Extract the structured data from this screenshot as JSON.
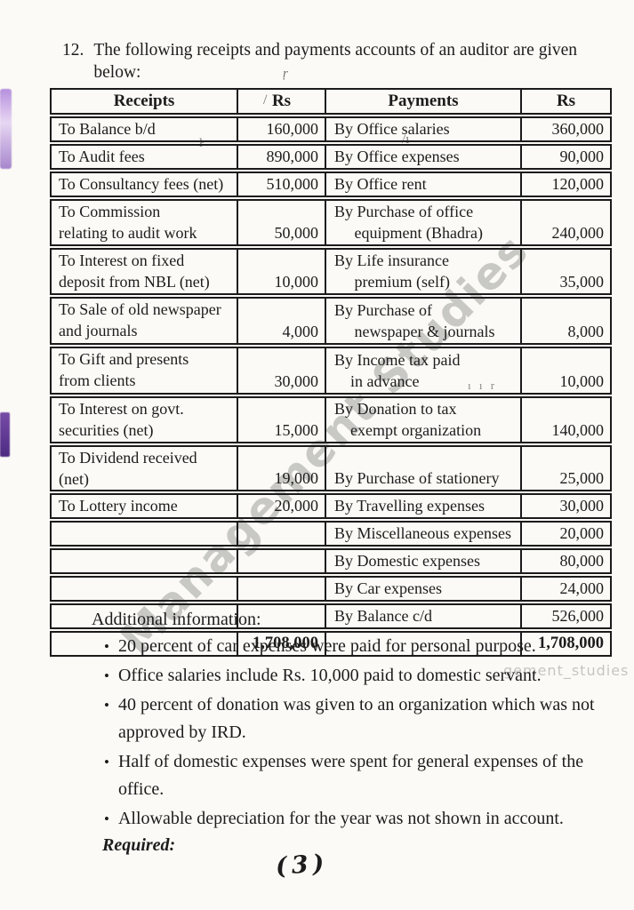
{
  "question": {
    "number": "12.",
    "text": "The following receipts and payments accounts of an auditor are given\nbelow:"
  },
  "table": {
    "headers": [
      "Receipts",
      "Rs",
      "Payments",
      "Rs"
    ],
    "rows": [
      {
        "receipt": "To Balance b/d",
        "receipt_amount": "160,000",
        "payment": "By Office salaries",
        "payment_amount": "360,000"
      },
      {
        "receipt": "To Audit fees",
        "receipt_amount": "890,000",
        "payment": "By Office expenses",
        "payment_amount": "90,000"
      },
      {
        "receipt": "To Consultancy fees (net)",
        "receipt_amount": "510,000",
        "payment": "By Office rent",
        "payment_amount": "120,000"
      },
      {
        "receipt": "To Commission\nrelating to audit work",
        "receipt_amount": "50,000",
        "payment": "By Purchase of office\n     equipment (Bhadra)",
        "payment_amount": "240,000"
      },
      {
        "receipt": "To Interest on fixed\ndeposit from NBL (net)",
        "receipt_amount": "10,000",
        "payment": "By Life insurance\n     premium (self)",
        "payment_amount": "35,000"
      },
      {
        "receipt": "To Sale of old newspaper\nand journals",
        "receipt_amount": "4,000",
        "payment": "By Purchase of\n     newspaper & journals",
        "payment_amount": "8,000"
      },
      {
        "receipt": "To Gift and presents\nfrom clients",
        "receipt_amount": "30,000",
        "payment": "By Income tax paid\n    in advance",
        "payment_amount": "10,000"
      },
      {
        "receipt": "To Interest on govt.\nsecurities (net)",
        "receipt_amount": "15,000",
        "payment": "By Donation to tax\n    exempt organization",
        "payment_amount": "140,000"
      },
      {
        "receipt": "To Dividend received\n(net)",
        "receipt_amount": "19,000",
        "payment": "By Purchase of stationery",
        "payment_amount": "25,000"
      },
      {
        "receipt": "To Lottery income",
        "receipt_amount": "20,000",
        "payment": "By Travelling expenses",
        "payment_amount": "30,000"
      },
      {
        "receipt": "",
        "receipt_amount": "",
        "payment": "By Miscellaneous expenses",
        "payment_amount": "20,000"
      },
      {
        "receipt": "",
        "receipt_amount": "",
        "payment": "By Domestic expenses",
        "payment_amount": "80,000"
      },
      {
        "receipt": "",
        "receipt_amount": "",
        "payment": "By Car expenses",
        "payment_amount": "24,000"
      },
      {
        "receipt": "",
        "receipt_amount": "",
        "payment": "By Balance c/d",
        "payment_amount": "526,000"
      },
      {
        "receipt": "",
        "receipt_amount": "1,708,000",
        "payment": "",
        "payment_amount": "1,708,000"
      }
    ]
  },
  "additional": {
    "heading": "Additional information:",
    "bullets": [
      "20 percent of car expenses were paid for personal purpose.",
      "Office salaries include Rs. 10,000 paid to domestic servant.",
      "40 percent of donation was given to an organization which was not\napproved by IRD.",
      "Half of domestic expenses were spent for general expenses of the\noffice.",
      "Allowable depreciation for the year was not shown in account."
    ],
    "required_label": "Required:"
  },
  "page_number": "(3)",
  "watermark": {
    "diagonal": "Management Studies",
    "small": "gement_studies"
  },
  "artifacts": {
    "header_mark": "ŗ",
    "rs_mark": "/",
    "audit_fees_mark": "ŀ",
    "office_expenses_mark": "/ı",
    "donation_mark": "ı ı r"
  },
  "colors": {
    "ink": "#1b1b1b",
    "paper": "#fbfaf6",
    "watermark_gray": "#8c8c8c",
    "smudge_purple": "#6b3fa0"
  }
}
